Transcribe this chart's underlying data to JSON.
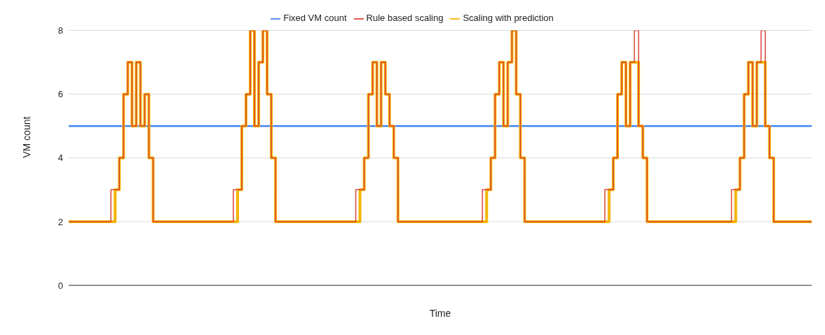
{
  "chart_data": {
    "type": "step",
    "xlabel": "Time",
    "ylabel": "VM count",
    "legend": "top",
    "grid": "y",
    "marker": "none",
    "line_style": "solid",
    "ylim": [
      0,
      8
    ],
    "yticks": [
      0,
      2,
      4,
      6,
      8
    ],
    "categories": [
      null,
      null,
      null,
      null,
      null,
      null,
      null,
      null,
      null,
      null,
      null,
      null,
      null,
      null,
      null,
      null,
      null,
      null,
      null,
      null,
      null,
      null,
      null,
      null,
      null,
      null,
      null,
      null,
      null,
      null,
      null,
      null,
      null,
      null,
      null,
      null,
      null,
      null,
      null,
      null,
      null,
      null,
      null,
      null,
      null,
      null,
      null,
      null,
      null,
      null,
      null,
      null,
      null,
      null,
      null,
      null,
      null,
      null,
      null,
      null,
      null,
      null,
      null,
      null,
      null,
      null,
      null,
      null,
      null,
      null,
      null,
      null,
      null,
      null,
      null,
      null,
      null,
      null,
      null,
      null,
      null,
      null,
      null,
      null,
      null,
      null,
      null,
      null,
      null,
      null,
      null,
      null,
      null,
      null,
      null,
      null,
      null,
      null,
      null,
      null,
      null,
      null,
      null,
      null,
      null,
      null,
      null,
      null,
      null,
      null,
      null,
      null,
      null,
      null,
      null,
      null,
      null,
      null,
      null,
      null,
      null,
      null,
      null,
      null,
      null,
      null,
      null,
      null,
      null,
      null,
      null,
      null,
      null,
      null,
      null,
      null,
      null,
      null,
      null,
      null,
      null,
      null,
      null,
      null,
      null,
      null,
      null,
      null,
      null,
      null,
      null,
      null,
      null,
      null,
      null,
      null,
      null,
      null,
      null,
      null,
      null,
      null,
      null,
      null,
      null,
      null,
      null,
      null,
      null,
      null,
      null,
      null,
      null,
      null,
      null,
      null,
      null
    ],
    "series": [
      {
        "name": "Fixed VM count",
        "color": "#4285f4",
        "values": [
          5,
          5,
          5,
          5,
          5,
          5,
          5,
          5,
          5,
          5,
          5,
          5,
          5,
          5,
          5,
          5,
          5,
          5,
          5,
          5,
          5,
          5,
          5,
          5,
          5,
          5,
          5,
          5,
          5,
          5,
          5,
          5,
          5,
          5,
          5,
          5,
          5,
          5,
          5,
          5,
          5,
          5,
          5,
          5,
          5,
          5,
          5,
          5,
          5,
          5,
          5,
          5,
          5,
          5,
          5,
          5,
          5,
          5,
          5,
          5,
          5,
          5,
          5,
          5,
          5,
          5,
          5,
          5,
          5,
          5,
          5,
          5,
          5,
          5,
          5,
          5,
          5,
          5,
          5,
          5,
          5,
          5,
          5,
          5,
          5,
          5,
          5,
          5,
          5,
          5,
          5,
          5,
          5,
          5,
          5,
          5,
          5,
          5,
          5,
          5,
          5,
          5,
          5,
          5,
          5,
          5,
          5,
          5,
          5,
          5,
          5,
          5,
          5,
          5,
          5,
          5,
          5,
          5,
          5,
          5,
          5,
          5,
          5,
          5,
          5,
          5,
          5,
          5,
          5,
          5,
          5,
          5,
          5,
          5,
          5,
          5,
          5,
          5,
          5,
          5,
          5,
          5,
          5,
          5,
          5,
          5,
          5,
          5,
          5,
          5,
          5,
          5,
          5,
          5,
          5,
          5,
          5,
          5,
          5,
          5,
          5,
          5,
          5,
          5,
          5,
          5,
          5,
          5,
          5,
          5,
          5,
          5,
          5,
          5,
          5,
          5,
          5
        ]
      },
      {
        "name": "Rule based scaling",
        "color": "#db4437",
        "values": [
          2,
          2,
          2,
          2,
          2,
          2,
          2,
          2,
          2,
          2,
          3,
          3,
          4,
          6,
          7,
          5,
          7,
          5,
          6,
          4,
          2,
          2,
          2,
          2,
          2,
          2,
          2,
          2,
          2,
          2,
          2,
          2,
          2,
          2,
          2,
          2,
          2,
          2,
          2,
          3,
          3,
          5,
          6,
          8,
          5,
          7,
          8,
          6,
          4,
          2,
          2,
          2,
          2,
          2,
          2,
          2,
          2,
          2,
          2,
          2,
          2,
          2,
          2,
          2,
          2,
          2,
          2,
          2,
          3,
          3,
          4,
          6,
          7,
          5,
          7,
          6,
          5,
          4,
          2,
          2,
          2,
          2,
          2,
          2,
          2,
          2,
          2,
          2,
          2,
          2,
          2,
          2,
          2,
          2,
          2,
          2,
          2,
          2,
          3,
          3,
          4,
          6,
          7,
          5,
          7,
          8,
          6,
          4,
          2,
          2,
          2,
          2,
          2,
          2,
          2,
          2,
          2,
          2,
          2,
          2,
          2,
          2,
          2,
          2,
          2,
          2,
          2,
          3,
          3,
          4,
          6,
          7,
          5,
          7,
          8,
          5,
          4,
          2,
          2,
          2,
          2,
          2,
          2,
          2,
          2,
          2,
          2,
          2,
          2,
          2,
          2,
          2,
          2,
          2,
          2,
          2,
          2,
          3,
          3,
          4,
          6,
          7,
          5,
          7,
          8,
          5,
          4,
          2,
          2,
          2,
          2,
          2,
          2,
          2,
          2,
          2,
          2
        ]
      },
      {
        "name": "Scaling with prediction",
        "color": "#f4b400",
        "values": [
          2,
          2,
          2,
          2,
          2,
          2,
          2,
          2,
          2,
          2,
          2,
          3,
          4,
          6,
          7,
          5,
          7,
          5,
          6,
          4,
          2,
          2,
          2,
          2,
          2,
          2,
          2,
          2,
          2,
          2,
          2,
          2,
          2,
          2,
          2,
          2,
          2,
          2,
          2,
          2,
          3,
          5,
          6,
          8,
          5,
          7,
          8,
          6,
          4,
          2,
          2,
          2,
          2,
          2,
          2,
          2,
          2,
          2,
          2,
          2,
          2,
          2,
          2,
          2,
          2,
          2,
          2,
          2,
          2,
          3,
          4,
          6,
          7,
          5,
          7,
          6,
          5,
          4,
          2,
          2,
          2,
          2,
          2,
          2,
          2,
          2,
          2,
          2,
          2,
          2,
          2,
          2,
          2,
          2,
          2,
          2,
          2,
          2,
          2,
          3,
          4,
          6,
          7,
          5,
          7,
          8,
          6,
          4,
          2,
          2,
          2,
          2,
          2,
          2,
          2,
          2,
          2,
          2,
          2,
          2,
          2,
          2,
          2,
          2,
          2,
          2,
          2,
          2,
          3,
          4,
          6,
          7,
          5,
          7,
          7,
          5,
          4,
          2,
          2,
          2,
          2,
          2,
          2,
          2,
          2,
          2,
          2,
          2,
          2,
          2,
          2,
          2,
          2,
          2,
          2,
          2,
          2,
          2,
          3,
          4,
          6,
          7,
          5,
          7,
          7,
          5,
          4,
          2,
          2,
          2,
          2,
          2,
          2,
          2,
          2,
          2,
          2
        ]
      }
    ]
  }
}
